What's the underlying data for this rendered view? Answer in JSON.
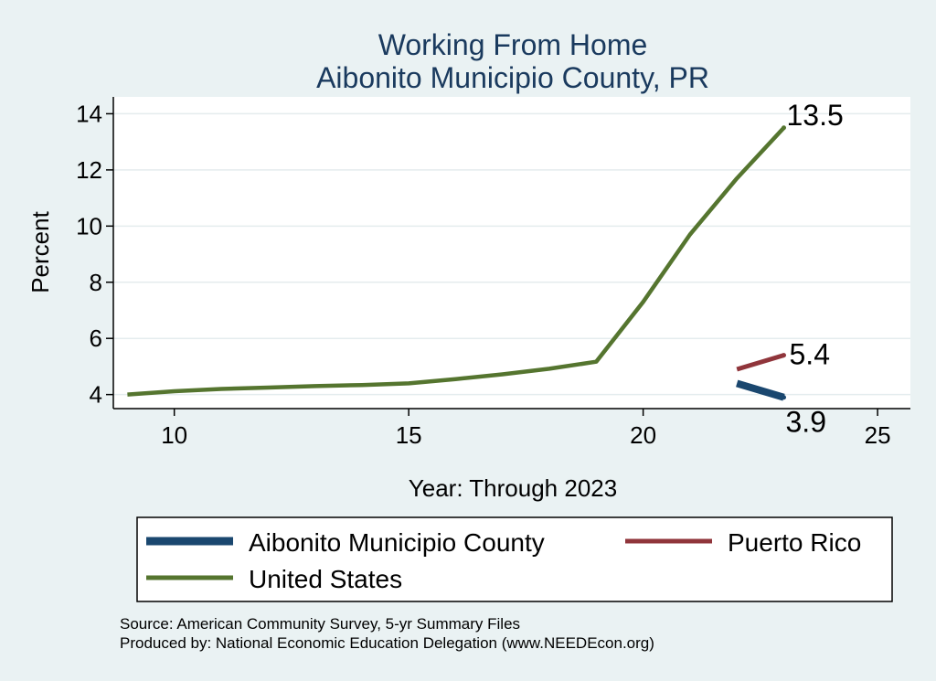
{
  "colors": {
    "background": "#eaf2f3",
    "plot_background": "#ffffff",
    "aibonito": "#1a476f",
    "puerto_rico": "#90353b",
    "united_states": "#55752f"
  },
  "chart_data": {
    "type": "line",
    "title": "Working From Home",
    "subtitle": "Aibonito Municipio County, PR",
    "xlabel": "Year: Through 2023",
    "ylabel": "Percent",
    "xlim": [
      8.7,
      25.7
    ],
    "ylim": [
      3.5,
      14.6
    ],
    "xticks": [
      10,
      15,
      20,
      25
    ],
    "yticks": [
      4,
      6,
      8,
      10,
      12,
      14
    ],
    "grid": true,
    "legend_position": "bottom",
    "series": [
      {
        "key": "aibonito",
        "name": "Aibonito Municipio County",
        "x": [
          22,
          23
        ],
        "y": [
          4.4,
          3.9
        ],
        "end_label": "3.9"
      },
      {
        "key": "puerto_rico",
        "name": "Puerto Rico",
        "x": [
          22,
          23
        ],
        "y": [
          4.9,
          5.4
        ],
        "end_label": "5.4"
      },
      {
        "key": "united_states",
        "name": "United States",
        "x": [
          9,
          10,
          11,
          12,
          13,
          14,
          15,
          16,
          17,
          18,
          19,
          20,
          21,
          22,
          23
        ],
        "y": [
          4.0,
          4.12,
          4.2,
          4.25,
          4.3,
          4.34,
          4.4,
          4.55,
          4.72,
          4.92,
          5.17,
          7.3,
          9.7,
          11.7,
          13.5
        ],
        "end_label": "13.5"
      }
    ]
  },
  "notes": {
    "source": "Source: American Community Survey, 5-yr Summary Files",
    "produced": "Produced by: National Economic Education Delegation (www.NEEDEcon.org)"
  }
}
